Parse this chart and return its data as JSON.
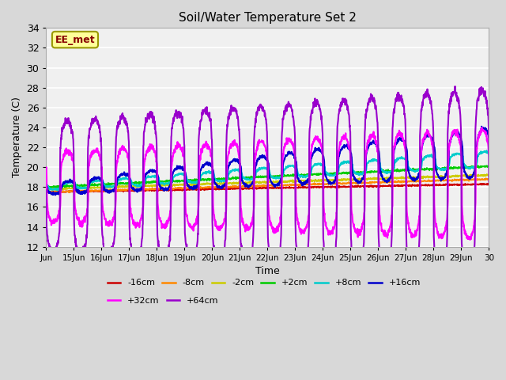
{
  "title": "Soil/Water Temperature Set 2",
  "xlabel": "Time",
  "ylabel": "Temperature (C)",
  "ylim": [
    12,
    34
  ],
  "xlim_days": [
    14,
    30
  ],
  "yticks": [
    12,
    14,
    16,
    18,
    20,
    22,
    24,
    26,
    28,
    30,
    32,
    34
  ],
  "xtick_labels": [
    "Jun",
    "15Jun",
    "16Jun",
    "17Jun",
    "18Jun",
    "19Jun",
    "20Jun",
    "21Jun",
    "22Jun",
    "23Jun",
    "24Jun",
    "25Jun",
    "26Jun",
    "27Jun",
    "28Jun",
    "29Jun",
    "30"
  ],
  "annotation_text": "EE_met",
  "annotation_box_facecolor": "#ffff99",
  "annotation_box_edgecolor": "#999900",
  "annotation_text_color": "#880000",
  "background_color": "#d8d8d8",
  "plot_bg_color": "#f0f0f0",
  "grid_color": "#ffffff",
  "series": [
    {
      "label": "-16cm",
      "color": "#cc0000"
    },
    {
      "label": "-8cm",
      "color": "#ff8800"
    },
    {
      "label": "-2cm",
      "color": "#cccc00"
    },
    {
      "label": "+2cm",
      "color": "#00cc00"
    },
    {
      "label": "+8cm",
      "color": "#00cccc"
    },
    {
      "label": "+16cm",
      "color": "#0000cc"
    },
    {
      "label": "+32cm",
      "color": "#ff00ff"
    },
    {
      "label": "+64cm",
      "color": "#9900cc"
    }
  ],
  "n_points": 1920
}
